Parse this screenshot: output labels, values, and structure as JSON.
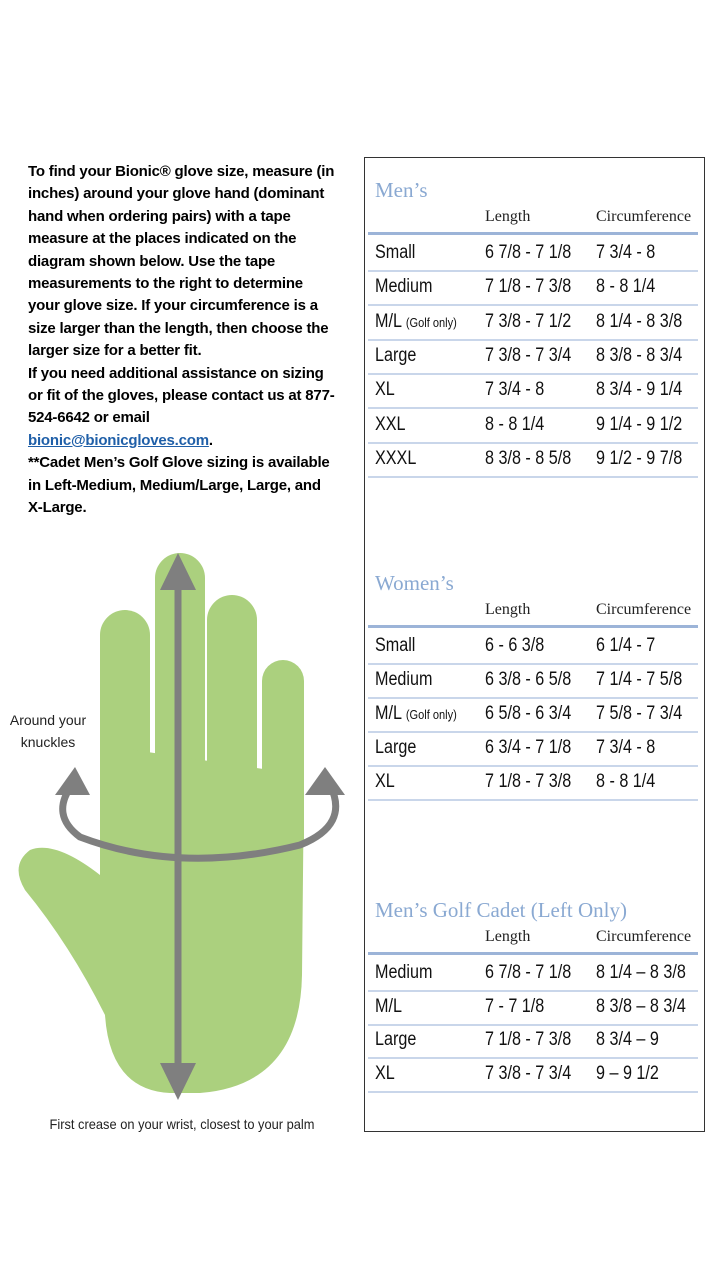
{
  "instructions": {
    "p1": "To find your Bionic® glove size, measure (in inches) around your glove hand (dominant hand when ordering pairs) with a tape measure at the places indicated on the diagram shown below. Use the tape measurements to the right to determine your glove size. If your circumference is a size larger than the length, then choose the larger size for a better fit.",
    "p2": "If you need additional assistance on sizing or fit of the gloves, please contact us at 877-524-6642 or email ",
    "email": "bionic@bionicgloves.com",
    "p2_end": ".",
    "p3": "**Cadet Men’s Golf Glove sizing is available in Left-Medium, Medium/Large, Large, and X-Large."
  },
  "diagram": {
    "knuckles_label": "Around your knuckles",
    "wrist_label": "First crease on your wrist, closest to your palm"
  },
  "sections": [
    {
      "title": "Men’s",
      "headers": [
        "Length",
        "Circumference"
      ],
      "rows": [
        {
          "size": "Small",
          "length": "6 7/8 - 7 1/8",
          "circumference": "7 3/4 - 8"
        },
        {
          "size": "Medium",
          "length": "7 1/8 - 7 3/8",
          "circumference": "8 - 8 1/4"
        },
        {
          "size": "M/L",
          "note": "(Golf only)",
          "length": "7 3/8 - 7 1/2",
          "circumference": "8 1/4 - 8 3/8"
        },
        {
          "size": "Large",
          "length": "7 3/8 - 7 3/4",
          "circumference": "8 3/8 - 8 3/4"
        },
        {
          "size": "XL",
          "length": "7 3/4 - 8",
          "circumference": "8 3/4 - 9 1/4"
        },
        {
          "size": "XXL",
          "length": "8 - 8 1/4",
          "circumference": "9 1/4 - 9 1/2"
        },
        {
          "size": "XXXL",
          "length": "8 3/8 - 8 5/8",
          "circumference": "9 1/2 - 9 7/8"
        }
      ]
    },
    {
      "title": "Women’s",
      "headers": [
        "Length",
        "Circumference"
      ],
      "rows": [
        {
          "size": "Small",
          "length": "6 - 6 3/8",
          "circumference": "6 1/4 - 7"
        },
        {
          "size": "Medium",
          "length": "6 3/8 - 6 5/8",
          "circumference": "7 1/4 - 7 5/8"
        },
        {
          "size": "M/L",
          "note": "(Golf only)",
          "length": "6 5/8 - 6 3/4",
          "circumference": "7 5/8 - 7 3/4"
        },
        {
          "size": "Large",
          "length": "6 3/4 - 7 1/8",
          "circumference": "7 3/4 - 8"
        },
        {
          "size": "XL",
          "length": "7 1/8 - 7 3/8",
          "circumference": "8 - 8 1/4"
        }
      ]
    },
    {
      "title": "Men’s Golf Cadet (Left Only)",
      "headers": [
        "Length",
        "Circumference"
      ],
      "rows": [
        {
          "size": "Medium",
          "length": "6 7/8 - 7 1/8",
          "circumference": "8 1/4 – 8 3/8"
        },
        {
          "size": "M/L",
          "length": "7 - 7 1/8",
          "circumference": "8 3/8 – 8 3/4"
        },
        {
          "size": "Large",
          "length": "7 1/8 - 7 3/8",
          "circumference": "8 3/4 – 9"
        },
        {
          "size": "XL",
          "length": "7 3/8 - 7 3/4",
          "circumference": "9 – 9 1/2"
        }
      ]
    }
  ]
}
